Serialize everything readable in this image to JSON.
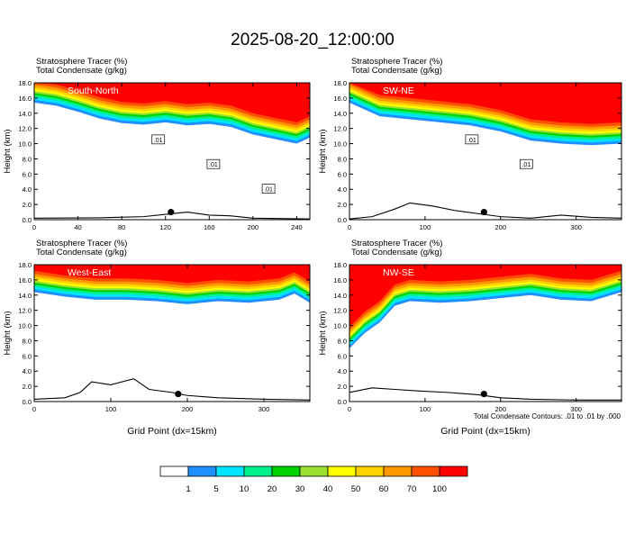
{
  "figure": {
    "title": "2025-08-20_12:00:00",
    "footnote": "Total Condensate Contours: .01 to .01 by .000",
    "colorbar": {
      "levels": [
        "1",
        "5",
        "10",
        "20",
        "30",
        "40",
        "50",
        "60",
        "70",
        "100"
      ],
      "colors": [
        "#ffffff",
        "#1e90ff",
        "#00e5ff",
        "#00f08c",
        "#00d200",
        "#9be132",
        "#ffff00",
        "#ffd200",
        "#ff9900",
        "#ff5000",
        "#ff0000"
      ]
    }
  },
  "chart_data": [
    {
      "type": "heatmap",
      "panel": "South-North",
      "label": "South-North",
      "header_line1": "Stratosphere Tracer   (%)",
      "header_line2": "Total Condensate   (g/kg)",
      "ylabel": "Height (km)",
      "xlabel": "",
      "xlim": [
        0,
        252
      ],
      "ylim": [
        0,
        18
      ],
      "xticks": [
        "0",
        "40",
        "80",
        "120",
        "160",
        "200",
        "240"
      ],
      "yticks": [
        "0.0",
        "2.0",
        "4.0",
        "6.0",
        "8.0",
        "10.0",
        "12.0",
        "14.0",
        "16.0",
        "18.0"
      ],
      "tracer_base_km": [
        [
          0,
          15.4
        ],
        [
          20,
          15.0
        ],
        [
          40,
          14.2
        ],
        [
          60,
          13.3
        ],
        [
          80,
          12.7
        ],
        [
          100,
          12.5
        ],
        [
          120,
          12.8
        ],
        [
          140,
          12.4
        ],
        [
          160,
          12.6
        ],
        [
          180,
          12.2
        ],
        [
          200,
          11.2
        ],
        [
          220,
          10.6
        ],
        [
          240,
          10.0
        ],
        [
          252,
          10.8
        ]
      ],
      "contour_labels": [
        ".01",
        ".01",
        ".01"
      ],
      "terrain_km": [
        [
          0,
          0.2
        ],
        [
          60,
          0.25
        ],
        [
          100,
          0.4
        ],
        [
          120,
          0.7
        ],
        [
          140,
          1.0
        ],
        [
          160,
          0.6
        ],
        [
          180,
          0.5
        ],
        [
          200,
          0.2
        ],
        [
          252,
          0.1
        ]
      ],
      "marker": [
        125,
        1.0
      ]
    },
    {
      "type": "heatmap",
      "panel": "SW-NE",
      "label": "SW-NE",
      "header_line1": "Stratosphere Tracer   (%)",
      "header_line2": "Total Condensate   (g/kg)",
      "ylabel": "Height (km)",
      "xlabel": "",
      "xlim": [
        0,
        360
      ],
      "ylim": [
        0,
        18
      ],
      "xticks": [
        "0",
        "100",
        "200",
        "300"
      ],
      "yticks": [
        "0.0",
        "2.0",
        "4.0",
        "6.0",
        "8.0",
        "10.0",
        "12.0",
        "14.0",
        "16.0",
        "18.0"
      ],
      "tracer_base_km": [
        [
          0,
          15.4
        ],
        [
          40,
          13.6
        ],
        [
          80,
          13.2
        ],
        [
          120,
          12.8
        ],
        [
          160,
          12.4
        ],
        [
          200,
          11.6
        ],
        [
          240,
          10.4
        ],
        [
          280,
          10.0
        ],
        [
          320,
          9.8
        ],
        [
          360,
          10.0
        ]
      ],
      "contour_labels": [
        ".01",
        ".01"
      ],
      "terrain_km": [
        [
          0,
          0.1
        ],
        [
          30,
          0.4
        ],
        [
          60,
          1.4
        ],
        [
          80,
          2.2
        ],
        [
          110,
          1.8
        ],
        [
          140,
          1.2
        ],
        [
          170,
          0.8
        ],
        [
          200,
          0.4
        ],
        [
          240,
          0.2
        ],
        [
          280,
          0.6
        ],
        [
          320,
          0.3
        ],
        [
          360,
          0.2
        ]
      ],
      "marker": [
        178,
        1.0
      ]
    },
    {
      "type": "heatmap",
      "panel": "West-East",
      "label": "West-East",
      "header_line1": "Stratosphere Tracer   (%)",
      "header_line2": "Total Condensate   (g/kg)",
      "ylabel": "Height (km)",
      "xlabel": "Grid Point (dx=15km)",
      "xlim": [
        0,
        360
      ],
      "ylim": [
        0,
        18
      ],
      "xticks": [
        "0",
        "100",
        "200",
        "300"
      ],
      "yticks": [
        "0.0",
        "2.0",
        "4.0",
        "6.0",
        "8.0",
        "10.0",
        "12.0",
        "14.0",
        "16.0",
        "18.0"
      ],
      "tracer_base_km": [
        [
          0,
          14.4
        ],
        [
          40,
          13.8
        ],
        [
          80,
          13.4
        ],
        [
          120,
          13.4
        ],
        [
          160,
          13.2
        ],
        [
          200,
          12.8
        ],
        [
          240,
          13.2
        ],
        [
          280,
          13.0
        ],
        [
          320,
          13.4
        ],
        [
          340,
          14.2
        ],
        [
          360,
          13.0
        ]
      ],
      "contour_labels": [],
      "terrain_km": [
        [
          0,
          0.3
        ],
        [
          40,
          0.5
        ],
        [
          60,
          1.2
        ],
        [
          75,
          2.6
        ],
        [
          100,
          2.2
        ],
        [
          130,
          3.0
        ],
        [
          150,
          1.6
        ],
        [
          180,
          1.2
        ],
        [
          200,
          0.8
        ],
        [
          240,
          0.5
        ],
        [
          300,
          0.3
        ],
        [
          360,
          0.2
        ]
      ],
      "marker": [
        188,
        1.0
      ]
    },
    {
      "type": "heatmap",
      "panel": "NW-SE",
      "label": "NW-SE",
      "header_line1": "Stratosphere Tracer   (%)",
      "header_line2": "Total Condensate   (g/kg)",
      "ylabel": "Height (km)",
      "xlabel": "Grid Point (dx=15km)",
      "xlim": [
        0,
        360
      ],
      "ylim": [
        0,
        18
      ],
      "xticks": [
        "0",
        "100",
        "200",
        "300"
      ],
      "yticks": [
        "0.0",
        "2.0",
        "4.0",
        "6.0",
        "8.0",
        "10.0",
        "12.0",
        "14.0",
        "16.0",
        "18.0"
      ],
      "tracer_base_km": [
        [
          0,
          7.0
        ],
        [
          20,
          9.0
        ],
        [
          40,
          10.4
        ],
        [
          60,
          12.6
        ],
        [
          80,
          13.2
        ],
        [
          120,
          13.0
        ],
        [
          160,
          13.2
        ],
        [
          200,
          13.6
        ],
        [
          240,
          14.0
        ],
        [
          280,
          13.4
        ],
        [
          320,
          13.2
        ],
        [
          360,
          14.4
        ]
      ],
      "contour_labels": [],
      "terrain_km": [
        [
          0,
          1.2
        ],
        [
          30,
          1.8
        ],
        [
          60,
          1.6
        ],
        [
          90,
          1.4
        ],
        [
          130,
          1.2
        ],
        [
          170,
          0.9
        ],
        [
          200,
          0.5
        ],
        [
          240,
          0.3
        ],
        [
          300,
          0.2
        ],
        [
          360,
          0.2
        ]
      ],
      "marker": [
        178,
        1.0
      ]
    }
  ]
}
